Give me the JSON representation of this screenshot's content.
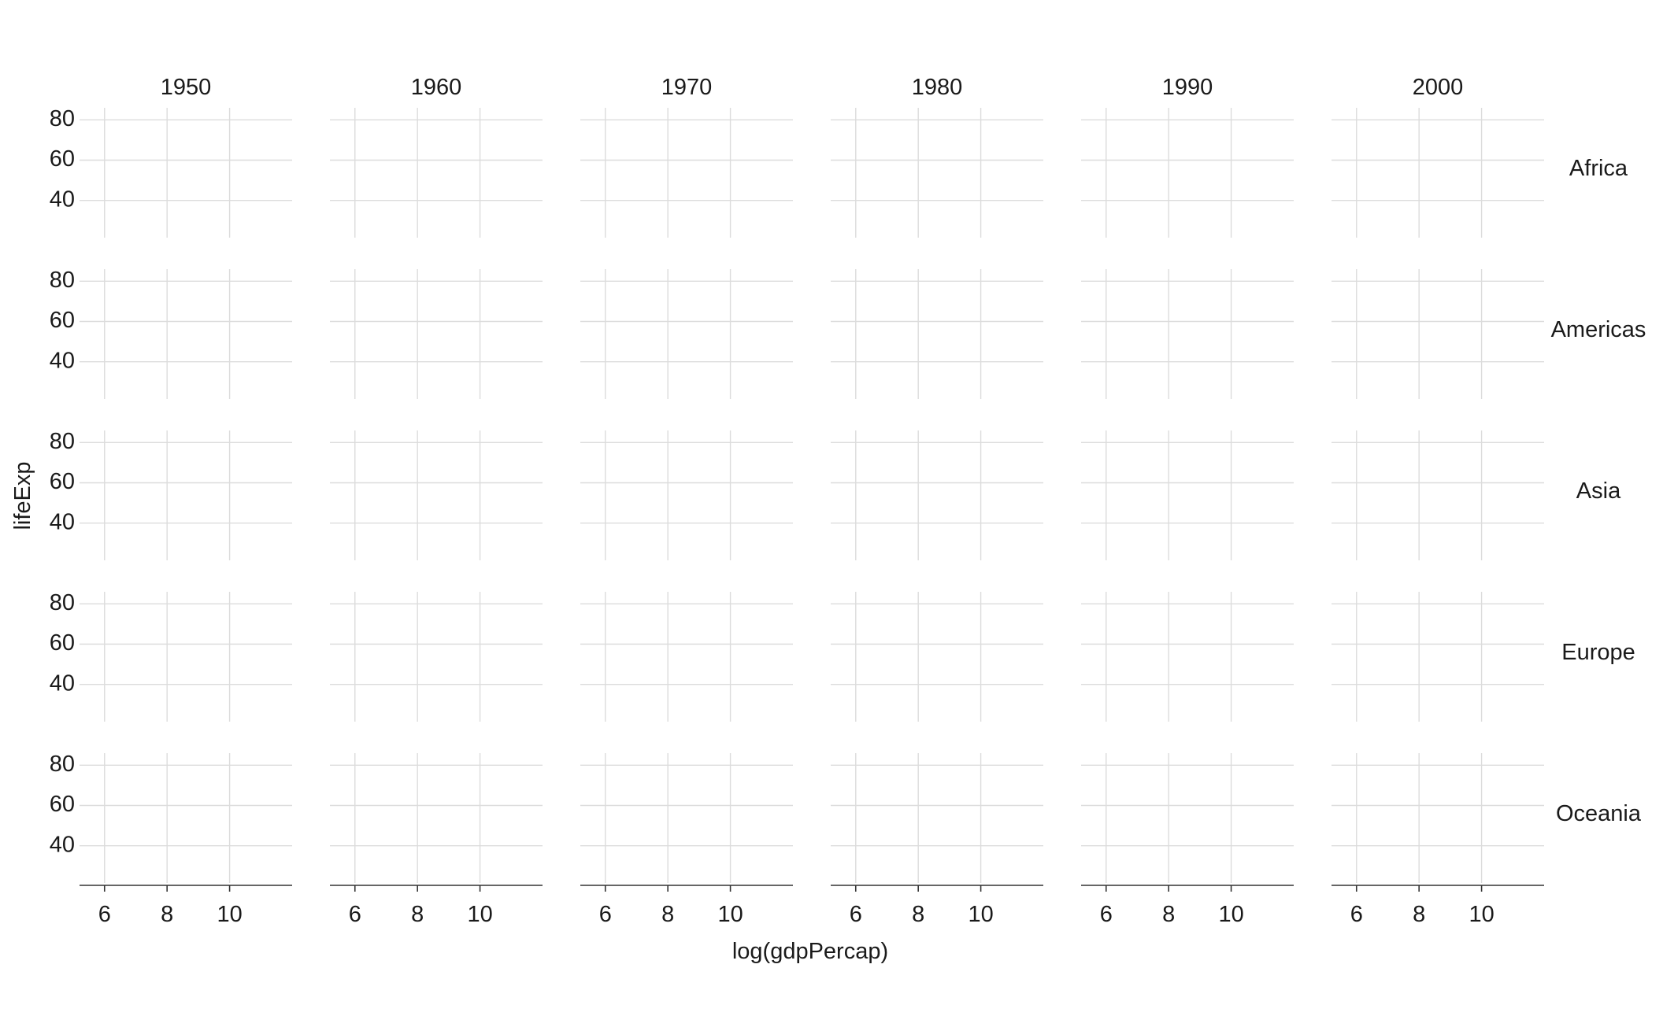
{
  "chart_data": {
    "type": "scatter",
    "title": "",
    "xlabel": "log(gdpPercap)",
    "ylabel": "lifeExp",
    "facet_columns": [
      "1950",
      "1960",
      "1970",
      "1980",
      "1990",
      "2000"
    ],
    "facet_rows": [
      "Africa",
      "Americas",
      "Asia",
      "Europe",
      "Oceania"
    ],
    "x_ticks": [
      6,
      8,
      10
    ],
    "y_ticks": [
      40,
      60,
      80
    ],
    "xlim": [
      5.2,
      12
    ],
    "ylim": [
      21.5,
      86
    ],
    "grid": true,
    "series": [],
    "colors": {
      "grid": "#dcdcdc",
      "axis": "#333333",
      "text": "#1a1a1a"
    }
  }
}
